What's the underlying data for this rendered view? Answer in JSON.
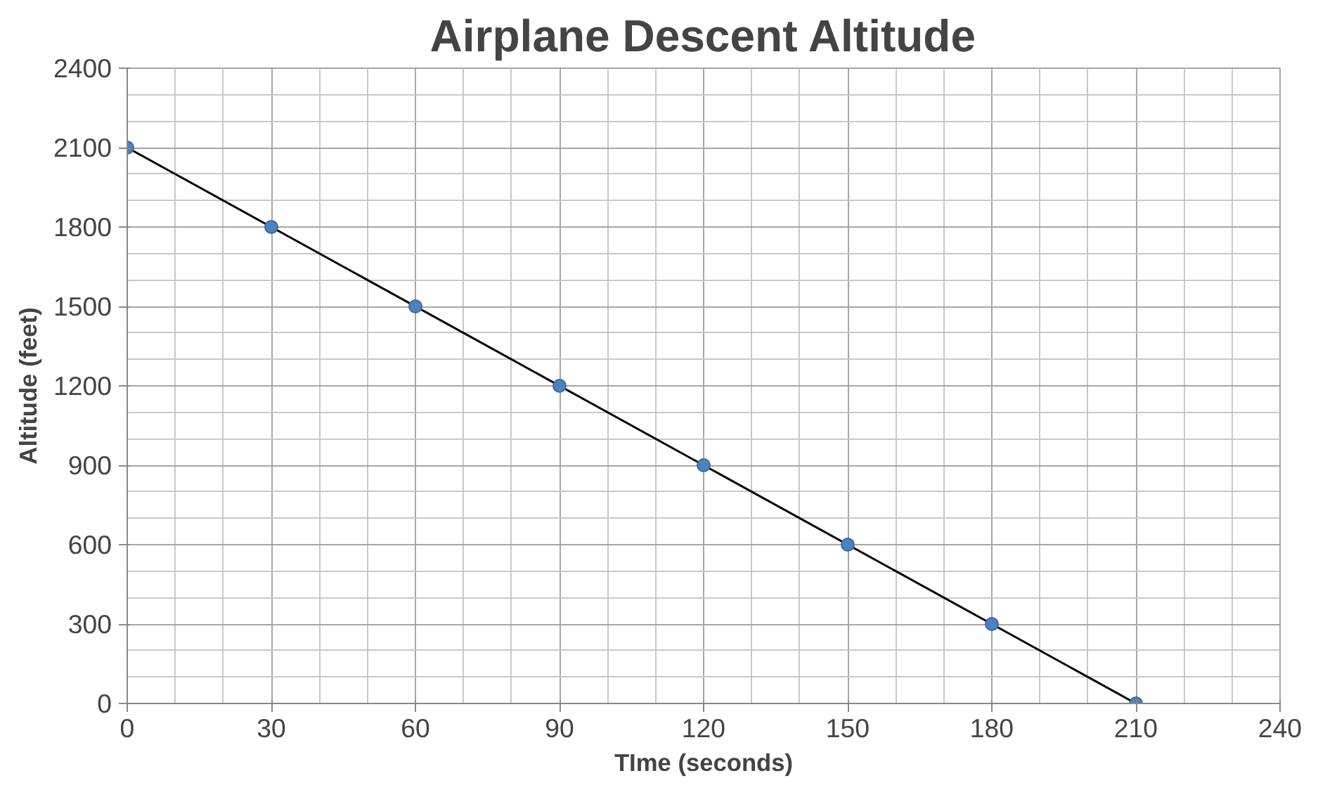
{
  "chart_data": {
    "type": "scatter",
    "title": "Airplane Descent Altitude",
    "xlabel": "TIme (seconds)",
    "ylabel": "Altitude (feet)",
    "series": [
      {
        "color": "#4f81bd",
        "x": [
          0,
          30,
          60,
          90,
          120,
          150,
          180,
          210
        ],
        "values": [
          2100,
          1800,
          1500,
          1200,
          900,
          600,
          300,
          0
        ],
        "marker": "circle"
      },
      {
        "type": "line",
        "color": "#000000",
        "x": [
          0,
          210
        ],
        "values": [
          2100,
          0
        ],
        "line_style": "solid"
      }
    ],
    "xlim": [
      0,
      240
    ],
    "xticks": [
      0,
      30,
      60,
      90,
      120,
      150,
      180,
      210,
      240
    ],
    "ylim": [
      0,
      2400
    ],
    "yticks": [
      0,
      300,
      600,
      900,
      1200,
      1500,
      1800,
      2100,
      2400
    ],
    "grid": true
  }
}
